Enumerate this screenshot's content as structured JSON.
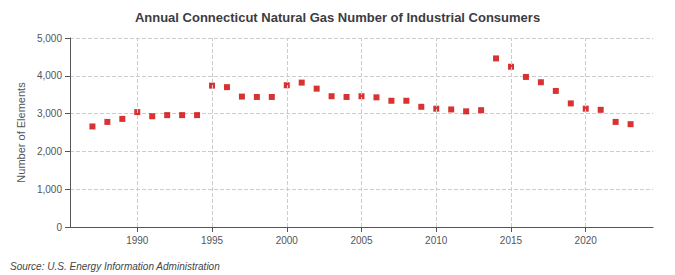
{
  "chart_data": {
    "type": "scatter",
    "title": "Annual Connecticut Natural Gas Number of Industrial Consumers",
    "ylabel": "Number of Elements",
    "annotations": [
      "Source: U.S. Energy Information Administration"
    ],
    "x": [
      1987,
      1988,
      1989,
      1990,
      1991,
      1992,
      1993,
      1994,
      1995,
      1996,
      1997,
      1998,
      1999,
      2000,
      2001,
      2002,
      2003,
      2004,
      2005,
      2006,
      2007,
      2008,
      2009,
      2010,
      2011,
      2012,
      2013,
      2014,
      2015,
      2016,
      2017,
      2018,
      2019,
      2020,
      2021,
      2022,
      2023
    ],
    "values": [
      2660,
      2780,
      2860,
      3040,
      2930,
      2960,
      2960,
      2960,
      3740,
      3700,
      3450,
      3440,
      3440,
      3750,
      3820,
      3660,
      3460,
      3440,
      3460,
      3430,
      3340,
      3340,
      3180,
      3130,
      3110,
      3060,
      3090,
      4460,
      4240,
      3970,
      3830,
      3600,
      3270,
      3130,
      3100,
      2780,
      2720
    ],
    "color": "#cc0000",
    "marker": "square",
    "xlim": [
      1985.5,
      2024.5
    ],
    "xticks": [
      1990,
      1995,
      2000,
      2005,
      2010,
      2015,
      2020
    ],
    "ylim": [
      0,
      5000
    ],
    "yticks": [
      0,
      {
        "value": 1000,
        "label": "1,000"
      },
      {
        "value": 2000,
        "label": "2,000"
      },
      {
        "value": 3000,
        "label": "3,000"
      },
      {
        "value": 4000,
        "label": "4,000"
      },
      {
        "value": 5000,
        "label": "5,000"
      }
    ],
    "grid": true
  }
}
